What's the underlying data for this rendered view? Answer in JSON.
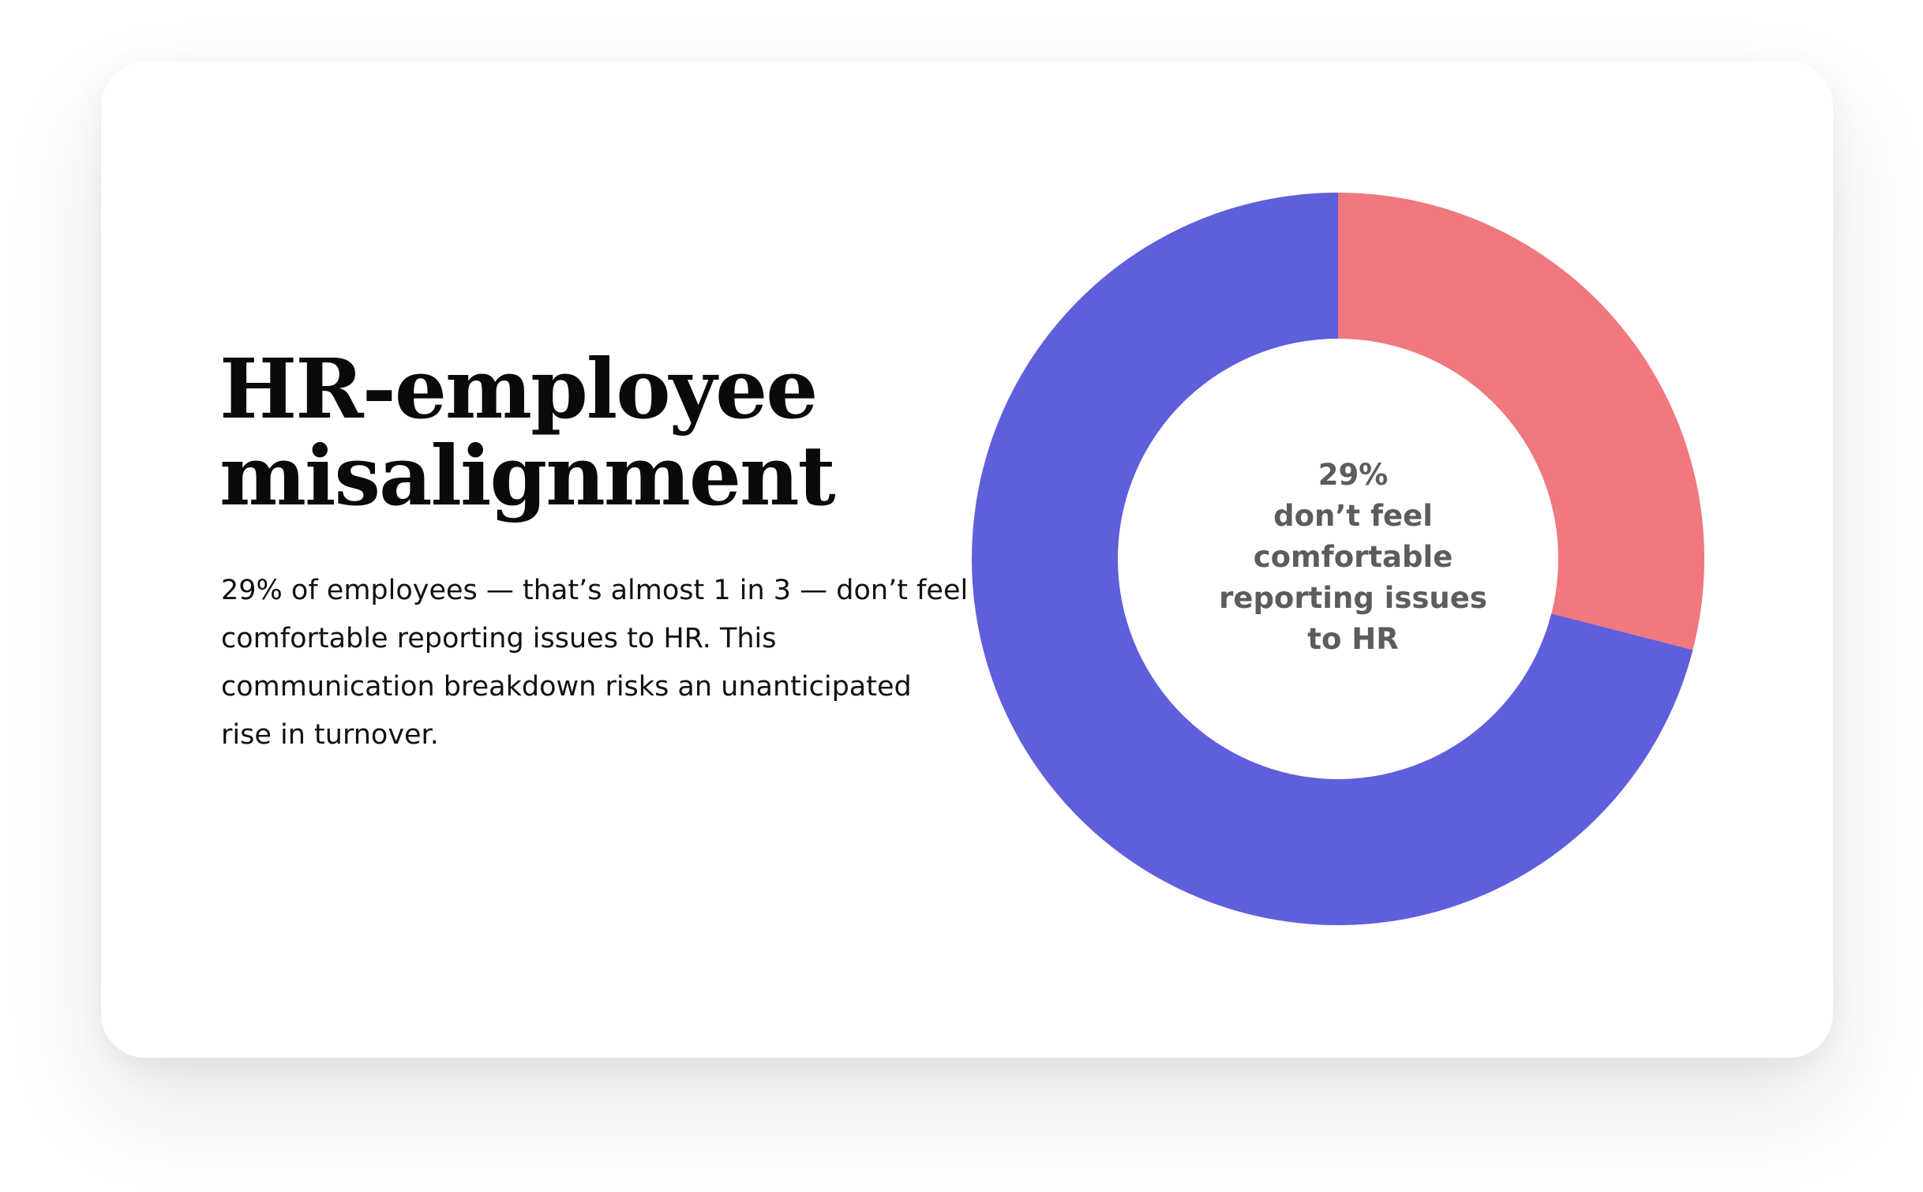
{
  "headline": {
    "line1": "HR-employee",
    "line2": "misalignment"
  },
  "body": {
    "line1": "29% of employees — that’s almost 1 in 3 — don’t feel",
    "line2": "comfortable reporting issues to HR. This",
    "line3": "communication breakdown risks an unanticipated",
    "line4": "rise in turnover."
  },
  "chart_data": {
    "type": "pie",
    "variant": "donut",
    "slices": [
      {
        "label": "don’t feel comfortable reporting issues to HR",
        "value": 29,
        "color": "#f0787f"
      },
      {
        "label": "",
        "value": 71,
        "color": "#5f5edb"
      }
    ],
    "center_label": {
      "line1": "29%",
      "line2": "don’t feel",
      "line3": "comfortable",
      "line4": "reporting issues",
      "line5": "to HR"
    }
  }
}
